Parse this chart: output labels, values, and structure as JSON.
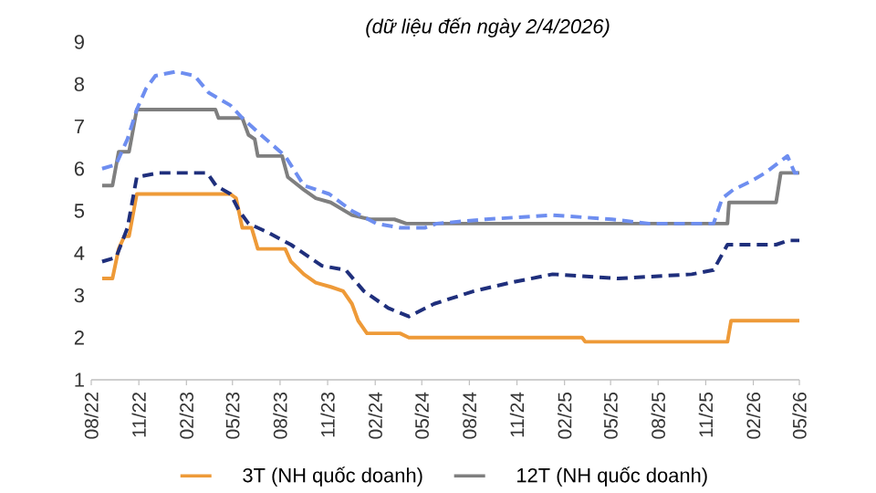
{
  "chart_data": {
    "type": "line",
    "annotations": [
      "(dữ liệu đến ngày 2/4/2026)"
    ],
    "xlim": [
      "2022-08-01",
      "2026-05-01"
    ],
    "xticks": [
      {
        "value": "2022-08-01",
        "label": "08/22"
      },
      {
        "value": "2022-11-01",
        "label": "11/22"
      },
      {
        "value": "2023-02-01",
        "label": "02/23"
      },
      {
        "value": "2023-05-01",
        "label": "05/23"
      },
      {
        "value": "2023-08-01",
        "label": "08/23"
      },
      {
        "value": "2023-11-01",
        "label": "11/23"
      },
      {
        "value": "2024-02-01",
        "label": "02/24"
      },
      {
        "value": "2024-05-01",
        "label": "05/24"
      },
      {
        "value": "2024-08-01",
        "label": "08/24"
      },
      {
        "value": "2024-11-01",
        "label": "11/24"
      },
      {
        "value": "2025-02-01",
        "label": "02/25"
      },
      {
        "value": "2025-05-01",
        "label": "05/25"
      },
      {
        "value": "2025-08-01",
        "label": "08/25"
      },
      {
        "value": "2025-11-01",
        "label": "11/25"
      },
      {
        "value": "2026-02-01",
        "label": "02/26"
      },
      {
        "value": "2026-05-01",
        "label": "05/26"
      }
    ],
    "ylim": [
      1,
      9
    ],
    "yticks": [
      1,
      2,
      3,
      4,
      5,
      6,
      7,
      8,
      9
    ],
    "legend": "bottom",
    "marker": "none",
    "series": [
      {
        "name": "3T (NH quốc doanh)",
        "color": "#ee9a38",
        "line_style": "solid",
        "x": [
          "2022-08-22",
          "2022-09-11",
          "2022-09-23",
          "2022-10-04",
          "2022-10-13",
          "2022-10-28",
          "2023-04-27",
          "2023-05-08",
          "2023-05-20",
          "2023-06-07",
          "2023-06-19",
          "2023-08-11",
          "2023-08-22",
          "2023-09-16",
          "2023-10-09",
          "2023-11-07",
          "2023-12-01",
          "2023-12-18",
          "2023-12-30",
          "2024-01-16",
          "2024-03-20",
          "2024-04-06",
          "2025-03-07",
          "2025-03-13",
          "2025-12-13",
          "2025-12-20",
          "2026-05-01"
        ],
        "values": [
          3.4,
          3.4,
          4.1,
          4.4,
          4.4,
          5.4,
          5.4,
          5.3,
          4.6,
          4.6,
          4.1,
          4.1,
          3.8,
          3.5,
          3.3,
          3.2,
          3.1,
          2.8,
          2.4,
          2.1,
          2.1,
          2.0,
          2.0,
          1.9,
          1.9,
          2.4,
          2.4
        ]
      },
      {
        "name": "12T (NH quốc doanh)",
        "color": "#7f7f7f",
        "line_style": "solid",
        "x": [
          "2022-08-22",
          "2022-09-11",
          "2022-09-23",
          "2022-10-13",
          "2022-10-28",
          "2023-03-29",
          "2023-04-04",
          "2023-05-20",
          "2023-06-01",
          "2023-06-13",
          "2023-06-19",
          "2023-08-05",
          "2023-08-16",
          "2023-09-16",
          "2023-10-09",
          "2023-11-07",
          "2023-12-18",
          "2024-01-22",
          "2024-03-09",
          "2024-04-01",
          "2025-12-13",
          "2025-12-16",
          "2026-03-17",
          "2026-03-26",
          "2026-05-01"
        ],
        "values": [
          5.6,
          5.6,
          6.4,
          6.4,
          7.4,
          7.4,
          7.2,
          7.2,
          6.8,
          6.7,
          6.3,
          6.3,
          5.8,
          5.5,
          5.3,
          5.2,
          4.9,
          4.8,
          4.8,
          4.7,
          4.7,
          5.2,
          5.2,
          5.9,
          5.9
        ]
      },
      {
        "color": "#6e8ef0",
        "line_style": "dashed",
        "x": [
          "2022-08-22",
          "2022-09-18",
          "2022-10-10",
          "2022-10-28",
          "2022-11-15",
          "2022-12-03",
          "2023-01-12",
          "2023-02-17",
          "2023-03-16",
          "2023-04-27",
          "2023-05-20",
          "2023-06-25",
          "2023-08-11",
          "2023-09-16",
          "2023-11-04",
          "2023-12-18",
          "2024-02-03",
          "2024-03-20",
          "2024-05-07",
          "2024-05-30",
          "2024-09-01",
          "2025-01-09",
          "2025-05-04",
          "2025-07-14",
          "2025-11-16",
          "2025-12-03",
          "2025-12-24",
          "2026-01-27",
          "2026-02-24",
          "2026-04-08",
          "2026-04-22",
          "2026-05-01"
        ],
        "values": [
          6.0,
          6.1,
          6.7,
          7.4,
          7.9,
          8.2,
          8.3,
          8.2,
          7.8,
          7.5,
          7.2,
          6.8,
          6.3,
          5.6,
          5.4,
          5.0,
          4.7,
          4.6,
          4.6,
          4.7,
          4.8,
          4.9,
          4.8,
          4.7,
          4.7,
          5.3,
          5.5,
          5.7,
          5.9,
          6.3,
          5.9,
          5.9
        ]
      },
      {
        "color": "#1f2f7c",
        "line_style": "dashed",
        "x": [
          "2022-08-22",
          "2022-09-18",
          "2022-10-10",
          "2022-10-28",
          "2022-12-09",
          "2023-03-13",
          "2023-03-30",
          "2023-04-27",
          "2023-05-14",
          "2023-06-01",
          "2023-07-07",
          "2023-08-22",
          "2023-10-21",
          "2023-12-06",
          "2024-01-10",
          "2024-02-26",
          "2024-04-06",
          "2024-05-25",
          "2024-08-10",
          "2024-10-19",
          "2025-01-09",
          "2025-05-16",
          "2025-10-05",
          "2025-11-16",
          "2025-12-13",
          "2026-01-27",
          "2026-03-17",
          "2026-04-10",
          "2026-05-01"
        ],
        "values": [
          3.8,
          3.9,
          4.6,
          5.8,
          5.9,
          5.9,
          5.6,
          5.4,
          5.0,
          4.7,
          4.5,
          4.2,
          3.7,
          3.6,
          3.1,
          2.7,
          2.5,
          2.8,
          3.1,
          3.3,
          3.5,
          3.4,
          3.5,
          3.6,
          4.2,
          4.2,
          4.2,
          4.3,
          4.3
        ]
      }
    ]
  }
}
